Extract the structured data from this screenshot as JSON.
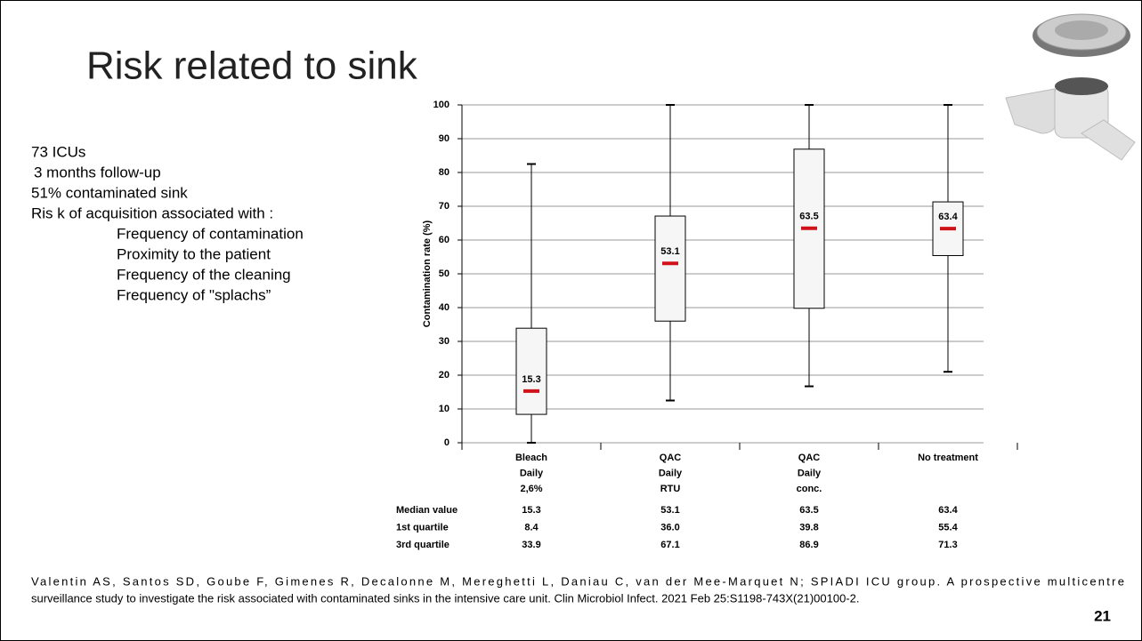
{
  "slide": {
    "title": "Risk related to sink",
    "bullets": [
      "73 ICUs",
      "3 months follow-up",
      "51% contaminated sink",
      "Ris k of acquisition associated with :"
    ],
    "sub_bullets": [
      "Frequency of contamination",
      "Proximity to the patient",
      "Frequency of the cleaning",
      "Frequency of \"splachs”"
    ],
    "citation": [
      "Valentin AS, Santos SD, Goube F, Gimenes R, Decalonne M, Mereghetti L, Daniau C, van der Mee-Marquet N; SPIADI ICU group. A prospective multicentre",
      "surveillance study to investigate the risk associated with contaminated sinks in the intensive care unit. Clin Microbiol Infect. 2021 Feb 25:S1198-743X(21)00100-2."
    ],
    "page_number": "21"
  },
  "chart_data": {
    "type": "box",
    "y_label": "Contamination rate (%)",
    "categories": [
      [
        "Bleach",
        "Daily",
        "2,6%"
      ],
      [
        "QAC",
        "Daily",
        "RTU"
      ],
      [
        "QAC",
        "Daily",
        "conc."
      ],
      [
        "No treatment"
      ]
    ],
    "stats": [
      {
        "name": "Median value",
        "values": [
          15.3,
          53.1,
          63.5,
          63.4
        ],
        "color": "#d0121b"
      },
      {
        "name": "1st quartile",
        "values": [
          8.4,
          36,
          39.8,
          55.4
        ],
        "value_labels": [
          "8.4",
          "36.0",
          "39.8",
          "55.4"
        ]
      },
      {
        "name": "3rd quartile",
        "values": [
          33.9,
          67.1,
          86.9,
          71.3
        ]
      }
    ],
    "whisker_min": [
      0,
      12.5,
      16.7,
      21
    ],
    "whisker_max": [
      82.5,
      100,
      100,
      100
    ],
    "ylim": [
      0,
      100
    ],
    "yticks": [
      0,
      10,
      20,
      30,
      40,
      50,
      60,
      70,
      80,
      90,
      100
    ],
    "grid": true
  }
}
